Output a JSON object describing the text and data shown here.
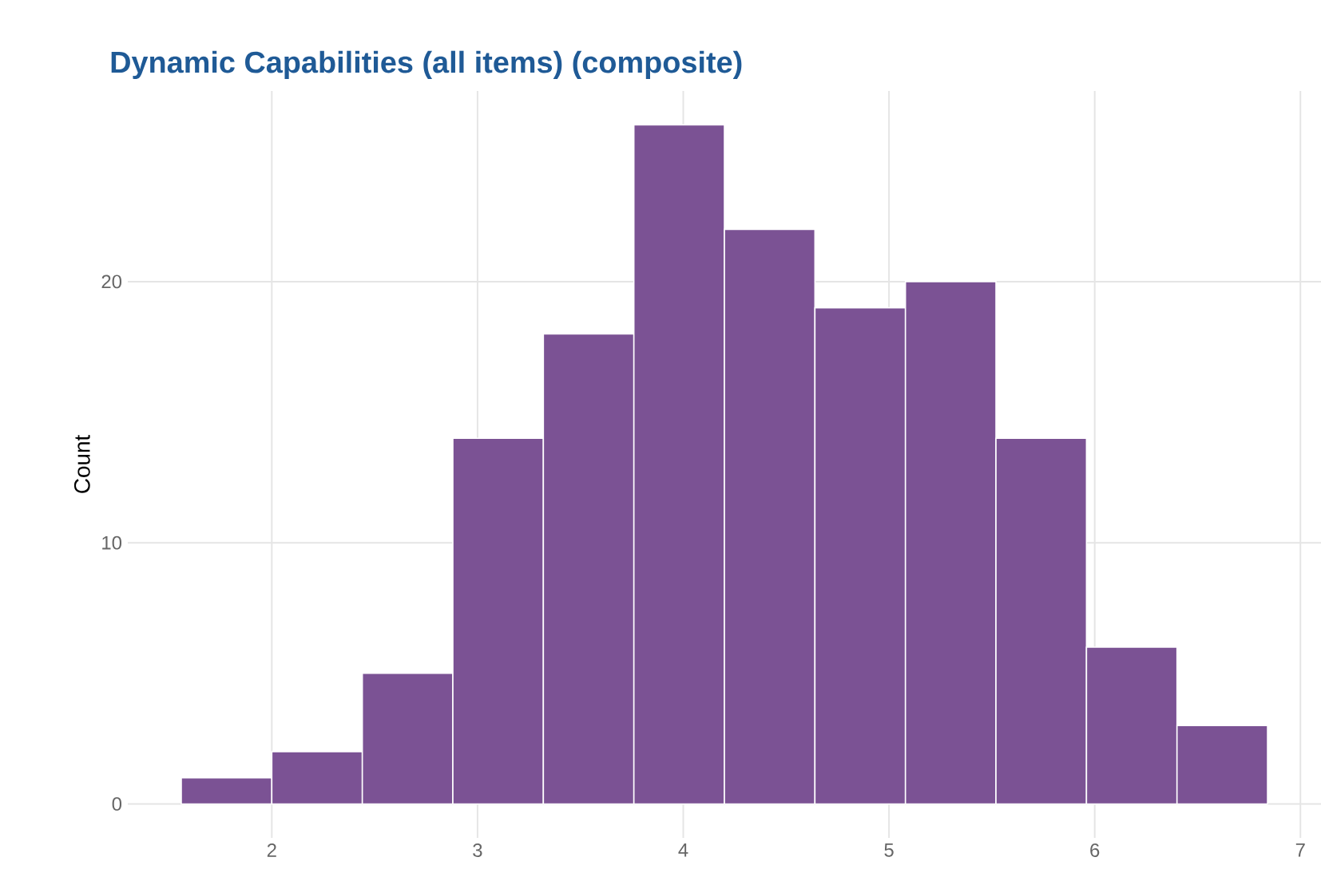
{
  "chart_data": {
    "type": "histogram",
    "title": "Dynamic Capabilities (all items) (composite)",
    "ylabel": "Count",
    "bins": [
      1.56,
      2.0,
      2.44,
      2.88,
      3.32,
      3.76,
      4.2,
      4.64,
      5.08,
      5.52,
      5.96,
      6.4,
      6.84
    ],
    "values": [
      1,
      2,
      5,
      14,
      18,
      26,
      22,
      19,
      20,
      14,
      6,
      3
    ],
    "color": "#7b5294",
    "xlim": [
      1.3,
      7.1
    ],
    "xticks": [
      2,
      3,
      4,
      5,
      6,
      7
    ],
    "ylim": [
      -1.3,
      27.3
    ],
    "yticks": [
      0,
      10,
      20
    ],
    "grid": true
  }
}
